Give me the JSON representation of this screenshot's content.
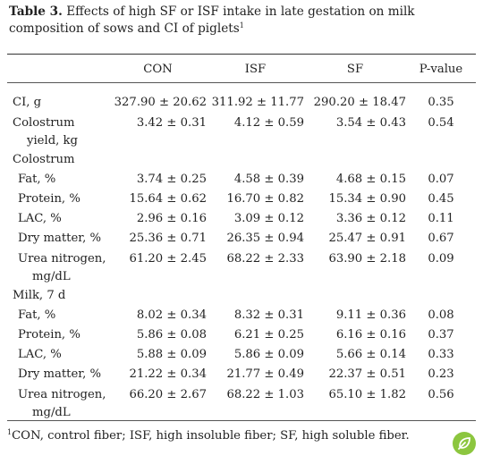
{
  "title": {
    "label": "Table 3.",
    "text": "Effects of high SF or ISF intake in late gestation on milk composition of sows and CI of piglets",
    "footnote_mark": "1"
  },
  "columns": [
    "",
    "CON",
    "ISF",
    "SF",
    "P-value"
  ],
  "rows": [
    {
      "type": "data",
      "indent": 0,
      "label": "CI, g",
      "label_cont": "",
      "con": "327.90 ± 20.62",
      "isf": "311.92 ± 11.77",
      "sf": "290.20 ± 18.47",
      "p": "0.35"
    },
    {
      "type": "data",
      "indent": 0,
      "label": "Colostrum",
      "label_cont": "yield, kg",
      "con": "3.42 ± 0.31",
      "isf": "4.12 ± 0.59",
      "sf": "3.54 ± 0.43",
      "p": "0.54"
    },
    {
      "type": "group",
      "indent": 0,
      "label": "Colostrum"
    },
    {
      "type": "data",
      "indent": 1,
      "label": "Fat, %",
      "label_cont": "",
      "con": "3.74 ± 0.25",
      "isf": "4.58 ± 0.39",
      "sf": "4.68 ± 0.15",
      "p": "0.07"
    },
    {
      "type": "data",
      "indent": 1,
      "label": "Protein, %",
      "label_cont": "",
      "con": "15.64 ± 0.62",
      "isf": "16.70 ± 0.82",
      "sf": "15.34 ± 0.90",
      "p": "0.45"
    },
    {
      "type": "data",
      "indent": 1,
      "label": "LAC, %",
      "label_cont": "",
      "con": "2.96 ± 0.16",
      "isf": "3.09 ± 0.12",
      "sf": "3.36 ± 0.12",
      "p": "0.11"
    },
    {
      "type": "data",
      "indent": 1,
      "label": "Dry matter, %",
      "label_cont": "",
      "con": "25.36 ± 0.71",
      "isf": "26.35 ± 0.94",
      "sf": "25.47 ± 0.91",
      "p": "0.67"
    },
    {
      "type": "data",
      "indent": 1,
      "label": "Urea nitrogen,",
      "label_cont": "mg/dL",
      "con": "61.20 ± 2.45",
      "isf": "68.22 ± 2.33",
      "sf": "63.90 ± 2.18",
      "p": "0.09"
    },
    {
      "type": "group",
      "indent": 0,
      "label": "Milk, 7 d"
    },
    {
      "type": "data",
      "indent": 1,
      "label": "Fat, %",
      "label_cont": "",
      "con": "8.02 ± 0.34",
      "isf": "8.32 ± 0.31",
      "sf": "9.11 ± 0.36",
      "p": "0.08"
    },
    {
      "type": "data",
      "indent": 1,
      "label": "Protein, %",
      "label_cont": "",
      "con": "5.86 ± 0.08",
      "isf": "6.21 ± 0.25",
      "sf": "6.16 ± 0.16",
      "p": "0.37"
    },
    {
      "type": "data",
      "indent": 1,
      "label": "LAC, %",
      "label_cont": "",
      "con": "5.88 ± 0.09",
      "isf": "5.86 ± 0.09",
      "sf": "5.66 ± 0.14",
      "p": "0.33"
    },
    {
      "type": "data",
      "indent": 1,
      "label": "Dry matter, %",
      "label_cont": "",
      "con": "21.22 ± 0.34",
      "isf": "21.77 ± 0.49",
      "sf": "22.37 ± 0.51",
      "p": "0.23"
    },
    {
      "type": "data",
      "indent": 1,
      "label": "Urea nitrogen,",
      "label_cont": "mg/dL",
      "con": "66.20 ± 2.67",
      "isf": "68.22 ± 1.03",
      "sf": "65.10 ± 1.82",
      "p": "0.56"
    }
  ],
  "footnote": {
    "mark": "1",
    "text": "CON, control fiber; ISF, high insoluble fiber; SF, high soluble fiber."
  },
  "icons": {
    "open_access": "open-access-icon",
    "open_access_color": "#8cc63f"
  }
}
